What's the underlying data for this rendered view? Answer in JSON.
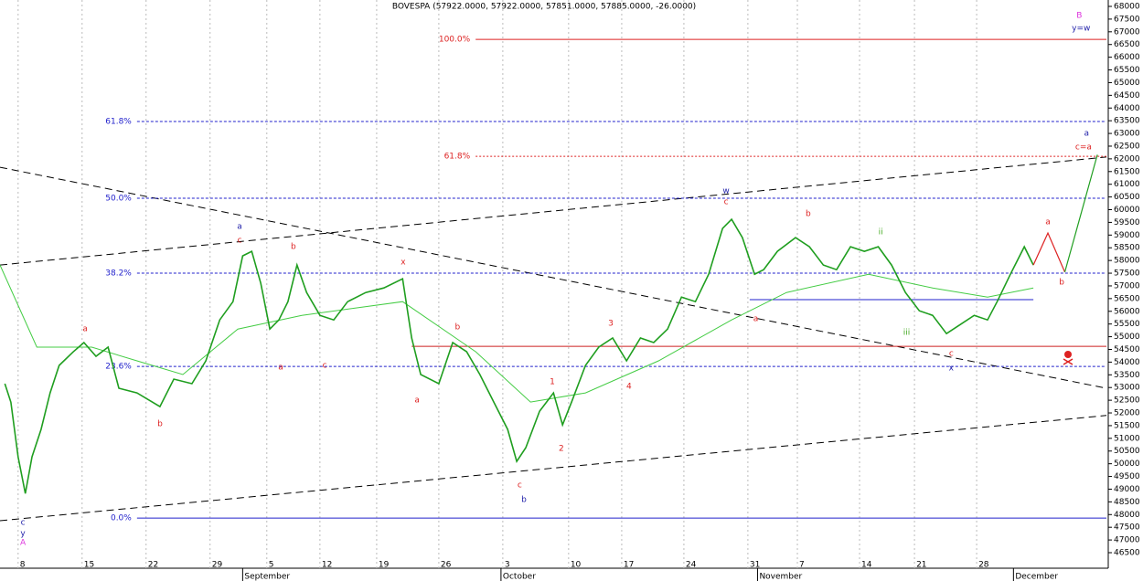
{
  "chart_data": {
    "type": "line",
    "title": "BOVESPA (57922.0000, 57922.0000, 57851.0000, 57885.0000, -26.0000)",
    "xlim": [
      -0.3,
      18.03
    ],
    "ylim": [
      46500,
      68000
    ],
    "xticks": [
      {
        "value": 0.0,
        "label": "8"
      },
      {
        "value": 1.06,
        "label": "15"
      },
      {
        "value": 2.12,
        "label": "22"
      },
      {
        "value": 3.18,
        "label": "29"
      },
      {
        "value": 4.12,
        "label": "5"
      },
      {
        "value": 5.0,
        "label": "12"
      },
      {
        "value": 5.94,
        "label": "19"
      },
      {
        "value": 6.97,
        "label": "26"
      },
      {
        "value": 8.03,
        "label": "3"
      },
      {
        "value": 9.12,
        "label": "10"
      },
      {
        "value": 10.0,
        "label": "17"
      },
      {
        "value": 11.03,
        "label": "24"
      },
      {
        "value": 12.09,
        "label": "31"
      },
      {
        "value": 12.91,
        "label": "7"
      },
      {
        "value": 13.94,
        "label": "14"
      },
      {
        "value": 14.85,
        "label": "21"
      },
      {
        "value": 15.88,
        "label": "28"
      }
    ],
    "month_ticks": [
      {
        "value": 3.72,
        "label": "September"
      },
      {
        "value": 8.0,
        "label": "October"
      },
      {
        "value": 12.25,
        "label": "November"
      },
      {
        "value": 16.49,
        "label": "December"
      }
    ],
    "yticks": [
      46500,
      47000,
      47500,
      48000,
      48500,
      49000,
      49500,
      50000,
      50500,
      51000,
      51500,
      52000,
      52500,
      53000,
      53500,
      54000,
      54500,
      55000,
      55500,
      56000,
      56500,
      57000,
      57500,
      58000,
      58500,
      59000,
      59500,
      60000,
      60500,
      61000,
      61500,
      62000,
      62500,
      63000,
      63500,
      64000,
      64500,
      65000,
      65500,
      66000,
      66500,
      67000,
      67500,
      68000
    ],
    "price": {
      "color": "#1f9e1f",
      "x": [
        -0.22,
        -0.12,
        0.0,
        0.12,
        0.23,
        0.38,
        0.53,
        0.68,
        0.91,
        1.09,
        1.29,
        1.49,
        1.67,
        1.97,
        2.35,
        2.58,
        2.88,
        3.11,
        3.34,
        3.56,
        3.72,
        3.87,
        4.02,
        4.17,
        4.32,
        4.47,
        4.62,
        4.78,
        5.0,
        5.23,
        5.46,
        5.76,
        6.06,
        6.37,
        6.52,
        6.67,
        6.97,
        7.2,
        7.43,
        7.65,
        7.88,
        8.11,
        8.26,
        8.41,
        8.64,
        8.87,
        9.02,
        9.17,
        9.4,
        9.62,
        9.85,
        10.08,
        10.31,
        10.53,
        10.76,
        10.99,
        11.22,
        11.44,
        11.67,
        11.82,
        12.0,
        12.2,
        12.35,
        12.58,
        12.88,
        13.11,
        13.34,
        13.56,
        13.79,
        14.02,
        14.25,
        14.47,
        14.7,
        14.93,
        15.15,
        15.38,
        15.61,
        15.84,
        16.06,
        16.22,
        16.44,
        16.67,
        16.82
      ],
      "values": [
        53150,
        52420,
        50270,
        48830,
        50270,
        51350,
        52790,
        53870,
        54400,
        54770,
        54230,
        54590,
        52970,
        52790,
        52250,
        53330,
        53150,
        54050,
        55660,
        56380,
        58180,
        58360,
        57100,
        55300,
        55660,
        56380,
        57820,
        56740,
        55840,
        55660,
        56380,
        56740,
        56920,
        57280,
        54950,
        53510,
        53150,
        54770,
        54410,
        53510,
        52430,
        51350,
        50090,
        50630,
        52070,
        52790,
        51530,
        52430,
        53870,
        54590,
        54950,
        54050,
        54950,
        54770,
        55300,
        56560,
        56380,
        57460,
        59260,
        59620,
        58900,
        57460,
        57640,
        58360,
        58900,
        58540,
        57820,
        57640,
        58540,
        58360,
        58540,
        57820,
        56740,
        56020,
        55840,
        55120,
        55480,
        55840,
        55660,
        56380,
        57460,
        58540,
        57820
      ]
    },
    "average": {
      "color": "#44cc44",
      "x": [
        -0.3,
        0.31,
        1.22,
        1.97,
        2.73,
        3.64,
        4.7,
        6.37,
        7.58,
        8.49,
        9.4,
        10.61,
        11.82,
        12.73,
        14.09,
        15.15,
        16.06,
        16.82
      ],
      "values": [
        57820,
        54590,
        54590,
        54050,
        53510,
        55300,
        55840,
        56380,
        54410,
        52430,
        52790,
        54050,
        55660,
        56740,
        57460,
        56920,
        56560,
        56920
      ]
    },
    "projections": [
      {
        "color": "#dd2222",
        "x": [
          16.82,
          17.06,
          17.34
        ],
        "values": [
          57820,
          59080,
          57540
        ]
      },
      {
        "color": "#1f9e1f",
        "x": [
          17.34,
          17.88
        ],
        "values": [
          57540,
          62160
        ]
      }
    ],
    "fib_levels": [
      {
        "label": "100.0%",
        "value": 66700,
        "color": "#dd2222",
        "start": 7.58,
        "style": "solid"
      },
      {
        "label": "61.8%",
        "value": 63470,
        "color": "#2222cc",
        "start": 1.97,
        "style": "dashed"
      },
      {
        "label": "61.8%",
        "value": 62100,
        "color": "#dd2222",
        "start": 7.58,
        "style": "dotted"
      },
      {
        "label": "50.0%",
        "value": 60450,
        "color": "#2222cc",
        "start": 1.97,
        "style": "dashed"
      },
      {
        "label": "38.2%",
        "value": 57500,
        "color": "#2222cc",
        "start": 1.97,
        "style": "dashed"
      },
      {
        "label": "23.6%",
        "value": 53830,
        "color": "#2222cc",
        "start": 1.97,
        "style": "dashed"
      },
      {
        "label": "0.0%",
        "value": 47860,
        "color": "#2222cc",
        "start": 1.97,
        "style": "solid"
      }
    ],
    "levels": [
      {
        "value": 54620,
        "color": "#cc2222",
        "start": 6.52,
        "end": 18.03
      },
      {
        "value": 56460,
        "color": "#2222cc",
        "start": 12.12,
        "end": 16.82
      }
    ],
    "trendlines": [
      {
        "x": [
          -0.3,
          18.03
        ],
        "values": [
          61670,
          52970
        ]
      },
      {
        "x": [
          -0.3,
          18.03
        ],
        "values": [
          57820,
          62070
        ]
      },
      {
        "x": [
          -0.3,
          18.03
        ],
        "values": [
          47760,
          51900
        ]
      }
    ],
    "annotations": [
      {
        "text": "c",
        "x": 0.08,
        "y": 47680,
        "color": "#2222aa"
      },
      {
        "text": "y",
        "x": 0.08,
        "y": 47250,
        "color": "#2222aa"
      },
      {
        "text": "A",
        "x": 0.08,
        "y": 46890,
        "color": "#dd33dd"
      },
      {
        "text": "a",
        "x": 3.67,
        "y": 59330,
        "color": "#2222aa"
      },
      {
        "text": "c",
        "x": 3.67,
        "y": 58790,
        "color": "#dd2222"
      },
      {
        "text": "a",
        "x": 1.11,
        "y": 55310,
        "color": "#dd2222"
      },
      {
        "text": "b",
        "x": 2.35,
        "y": 51570,
        "color": "#dd2222"
      },
      {
        "text": "b",
        "x": 4.56,
        "y": 58540,
        "color": "#dd2222"
      },
      {
        "text": "a",
        "x": 4.35,
        "y": 53800,
        "color": "#dd2222"
      },
      {
        "text": "c",
        "x": 5.08,
        "y": 53870,
        "color": "#dd2222"
      },
      {
        "text": "x",
        "x": 6.38,
        "y": 57930,
        "color": "#dd2222"
      },
      {
        "text": "a",
        "x": 6.61,
        "y": 52500,
        "color": "#dd2222"
      },
      {
        "text": "b",
        "x": 7.28,
        "y": 55380,
        "color": "#dd2222"
      },
      {
        "text": "c",
        "x": 8.31,
        "y": 49160,
        "color": "#dd2222"
      },
      {
        "text": "b",
        "x": 8.38,
        "y": 48580,
        "color": "#2222aa"
      },
      {
        "text": "1",
        "x": 8.85,
        "y": 53220,
        "color": "#dd2222"
      },
      {
        "text": "2",
        "x": 9.0,
        "y": 50600,
        "color": "#dd2222"
      },
      {
        "text": "3",
        "x": 9.82,
        "y": 55520,
        "color": "#dd2222"
      },
      {
        "text": "4",
        "x": 10.12,
        "y": 53040,
        "color": "#dd2222"
      },
      {
        "text": "w",
        "x": 11.73,
        "y": 60740,
        "color": "#2222aa"
      },
      {
        "text": "c",
        "x": 11.73,
        "y": 60300,
        "color": "#dd2222"
      },
      {
        "text": "a",
        "x": 12.22,
        "y": 55700,
        "color": "#dd2222"
      },
      {
        "text": "b",
        "x": 13.09,
        "y": 59840,
        "color": "#dd2222"
      },
      {
        "text": "ii",
        "x": 14.29,
        "y": 59120,
        "color": "#44aa22"
      },
      {
        "text": "iii",
        "x": 14.72,
        "y": 55160,
        "color": "#44aa22"
      },
      {
        "text": "c",
        "x": 15.46,
        "y": 54330,
        "color": "#dd2222"
      },
      {
        "text": "x",
        "x": 15.46,
        "y": 53760,
        "color": "#2222aa"
      },
      {
        "text": "a",
        "x": 17.06,
        "y": 59510,
        "color": "#dd2222"
      },
      {
        "text": "b",
        "x": 17.29,
        "y": 57140,
        "color": "#dd2222"
      },
      {
        "text": "a",
        "x": 17.7,
        "y": 63000,
        "color": "#2222aa"
      },
      {
        "text": "c=a",
        "x": 17.65,
        "y": 62460,
        "color": "#dd2222"
      },
      {
        "text": "B",
        "x": 17.58,
        "y": 67640,
        "color": "#dd33dd"
      },
      {
        "text": "y=w",
        "x": 17.61,
        "y": 67140,
        "color": "#2222aa"
      }
    ]
  }
}
